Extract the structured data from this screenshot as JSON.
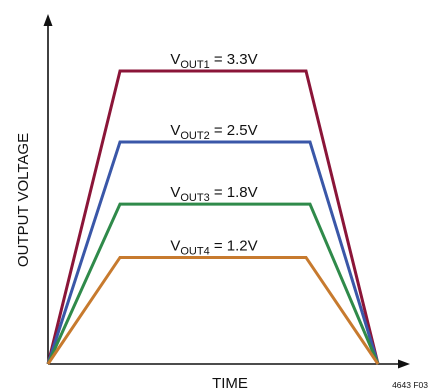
{
  "chart_data": {
    "type": "line",
    "title": "",
    "xlabel": "TIME",
    "ylabel": "OUTPUT VOLTAGE",
    "x_ticks": "none",
    "y_ticks": "none",
    "grid": false,
    "legend": "none",
    "annotation_position": "above each plateau",
    "series": [
      {
        "label_main": "V",
        "label_sub": "OUT1",
        "label_rest": " = 3.3V",
        "level": 3.3,
        "color": "#8b1538"
      },
      {
        "label_main": "V",
        "label_sub": "OUT2",
        "label_rest": " = 2.5V",
        "level": 2.5,
        "color": "#3a57a8"
      },
      {
        "label_main": "V",
        "label_sub": "OUT3",
        "label_rest": " = 1.8V",
        "level": 1.8,
        "color": "#2f8a4a"
      },
      {
        "label_main": "V",
        "label_sub": "OUT4",
        "label_rest": " = 1.2V",
        "level": 1.2,
        "color": "#c77a2e"
      }
    ],
    "shape": {
      "description_free_note": "",
      "x": [
        0,
        0.22,
        0.78,
        1
      ],
      "ramp_fraction_of_level": [
        0,
        1,
        1,
        0
      ]
    },
    "figure_id": "4643 F03"
  }
}
